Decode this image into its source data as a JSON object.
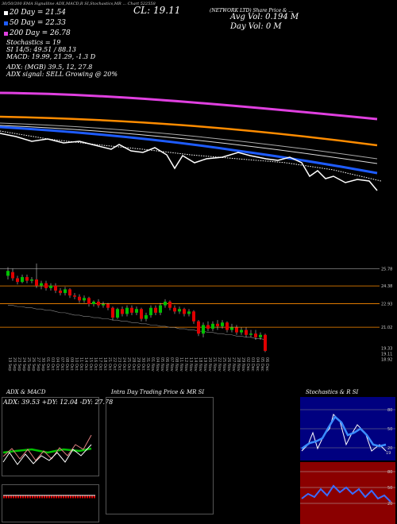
{
  "header": {
    "top_label": "30/50/200 EMA Signalline ADX,MACD,R   SI,Stochastics,MR  ... Chart 522558",
    "cl": "CL: 19.11",
    "network": "(NETWORK LTD) Share Price & ...",
    "avg_vol": "Avg Vol: 0.194  M",
    "day_vol": "Day Vol: 0  M",
    "ema20": "20  Day = 21.54",
    "ema50": "50  Day = 22.33",
    "ema200": "200  Day = 26.78",
    "stoch": "Stochastics = 19",
    "si": "SI 14/5: 49.51 / 88.13",
    "macd": "MACD: 19.99, 21.29, -1.3 D",
    "adx": "ADX:                   (MGB) 39.5,  12,  27.8",
    "adx_signal": "ADX  signal: SELL Growing @ 20%"
  },
  "colors": {
    "ema20": "#ffffff",
    "ema50": "#1e5cff",
    "ema100": "#ff8c00",
    "ema200": "#e040e0",
    "up": "#00c000",
    "down": "#e00000",
    "level_line": "#ff8c00",
    "rsi_bg": "#8b0000",
    "stoch_bg": "#000080"
  },
  "chart_data": {
    "type": "candlestick",
    "price_levels": [
      "25.78",
      "24.38",
      "22.93",
      "21.02",
      "19.33",
      "19.11",
      "18.92"
    ],
    "dates": [
      "19 Sep",
      "20 Sep",
      "23 Sep",
      "24 Sep",
      "25 Sep",
      "26 Sep",
      "27 Sep",
      "30 Sep",
      "01 Oct",
      "03 Oct",
      "04 Oct",
      "07 Oct",
      "08 Oct",
      "09 Oct",
      "10 Oct",
      "11 Oct",
      "14 Oct",
      "15 Oct",
      "16 Oct",
      "17 Oct",
      "18 Oct",
      "21 Oct",
      "22 Oct",
      "23 Oct",
      "24 Oct",
      "25 Oct",
      "28 Oct",
      "29 Oct",
      "30 Oct",
      "31 Oct",
      "01 Nov",
      "04 Nov",
      "05 Nov",
      "06 Nov",
      "07 Nov",
      "08 Nov",
      "11 Nov",
      "12 Nov",
      "13 Nov",
      "14 Nov",
      "18 Nov",
      "19 Nov",
      "20 Nov",
      "21 Nov",
      "22 Nov",
      "25 Nov",
      "26 Nov",
      "27 Nov",
      "28 Nov",
      "29 Nov",
      "02 Dec",
      "03 Dec",
      "04 Dec",
      "05 Dec",
      "06 Dec"
    ],
    "candles": [
      [
        25.2,
        25.6,
        25.9,
        24.9
      ],
      [
        25.5,
        25.0,
        25.8,
        24.8
      ],
      [
        25.0,
        24.7,
        25.2,
        24.5
      ],
      [
        24.7,
        25.1,
        25.3,
        24.6
      ],
      [
        25.1,
        24.8,
        25.3,
        24.6
      ],
      [
        24.8,
        24.9,
        25.1,
        24.6
      ],
      [
        24.9,
        24.4,
        26.2,
        24.2
      ],
      [
        24.4,
        24.6,
        24.8,
        24.1
      ],
      [
        24.6,
        24.2,
        24.8,
        24.0
      ],
      [
        24.2,
        24.4,
        24.6,
        24.0
      ],
      [
        24.4,
        24.0,
        24.6,
        23.8
      ],
      [
        24.0,
        23.8,
        24.2,
        23.6
      ],
      [
        23.8,
        24.1,
        24.3,
        23.6
      ],
      [
        24.1,
        23.6,
        24.2,
        23.4
      ],
      [
        23.6,
        23.5,
        23.8,
        23.3
      ],
      [
        23.5,
        23.2,
        23.7,
        23.0
      ],
      [
        23.2,
        23.4,
        23.6,
        23.0
      ],
      [
        23.4,
        22.9,
        23.5,
        22.7
      ],
      [
        22.9,
        23.1,
        23.2,
        22.7
      ],
      [
        23.1,
        22.8,
        23.3,
        22.6
      ],
      [
        22.8,
        22.9,
        23.1,
        22.6
      ],
      [
        22.9,
        22.6,
        23.0,
        22.4
      ],
      [
        22.6,
        21.8,
        22.7,
        21.6
      ],
      [
        21.8,
        22.5,
        22.6,
        21.7
      ],
      [
        22.5,
        22.1,
        22.7,
        21.9
      ],
      [
        22.1,
        22.6,
        22.8,
        21.9
      ],
      [
        22.6,
        22.2,
        22.8,
        22.0
      ],
      [
        22.2,
        22.5,
        22.7,
        22.0
      ],
      [
        22.5,
        21.7,
        22.6,
        21.5
      ],
      [
        21.7,
        22.0,
        22.2,
        21.5
      ],
      [
        22.0,
        22.6,
        22.8,
        21.8
      ],
      [
        22.6,
        22.2,
        22.8,
        22.0
      ],
      [
        22.2,
        22.8,
        23.0,
        22.0
      ],
      [
        22.8,
        23.1,
        23.3,
        22.6
      ],
      [
        23.1,
        22.6,
        23.2,
        22.4
      ],
      [
        22.6,
        22.3,
        22.8,
        22.1
      ],
      [
        22.3,
        22.5,
        22.7,
        22.1
      ],
      [
        22.5,
        22.1,
        22.6,
        21.9
      ],
      [
        22.1,
        22.3,
        22.5,
        21.9
      ],
      [
        22.3,
        21.5,
        22.4,
        21.3
      ],
      [
        21.5,
        20.5,
        21.6,
        20.3
      ],
      [
        20.5,
        21.2,
        21.4,
        20.2
      ],
      [
        21.2,
        20.9,
        21.5,
        20.7
      ],
      [
        20.9,
        21.3,
        21.5,
        20.7
      ],
      [
        21.3,
        21.1,
        21.6,
        20.8
      ],
      [
        21.1,
        21.4,
        21.6,
        20.9
      ],
      [
        21.4,
        20.8,
        21.5,
        20.6
      ],
      [
        20.8,
        21.0,
        21.3,
        20.6
      ],
      [
        21.0,
        20.6,
        21.2,
        20.4
      ],
      [
        20.6,
        20.8,
        21.0,
        20.4
      ],
      [
        20.8,
        20.4,
        21.0,
        20.2
      ],
      [
        20.4,
        20.5,
        20.8,
        20.2
      ],
      [
        20.5,
        20.2,
        20.8,
        20.0
      ],
      [
        20.2,
        20.4,
        20.6,
        20.0
      ],
      [
        20.4,
        19.1,
        20.5,
        19.0
      ]
    ],
    "ema_price": [
      22.8,
      22.8,
      22.7,
      22.7,
      22.6,
      22.6,
      22.5,
      22.5,
      22.4,
      22.4,
      22.3,
      22.2,
      22.2,
      22.1,
      22.0,
      22.0,
      21.9,
      21.9,
      21.8,
      21.8,
      21.7,
      21.7,
      21.6,
      21.6,
      21.5,
      21.5,
      21.4,
      21.4,
      21.3,
      21.3,
      21.2,
      21.2,
      21.1,
      21.1,
      21.0,
      21.0,
      20.9,
      20.9,
      20.8,
      20.8,
      20.7,
      20.7,
      20.6,
      20.6,
      20.5,
      20.5,
      20.4,
      20.4,
      20.3,
      20.3,
      20.2,
      20.2,
      20.1,
      20.1,
      20.0
    ],
    "adx_macd": {
      "title": "ADX  & MACD",
      "readout": "ADX: 39.53  +DY: 12.04  -DY: 27.78"
    },
    "intraday": {
      "title": "Intra Day Trading Price  & MR          SI"
    },
    "stoch_rsi": {
      "title": "Stochastics & R          SI",
      "stoch_levels": [
        "80",
        "50",
        "20"
      ],
      "rsi_levels": [
        "80",
        "50",
        "20"
      ],
      "stoch_value": "19"
    }
  }
}
